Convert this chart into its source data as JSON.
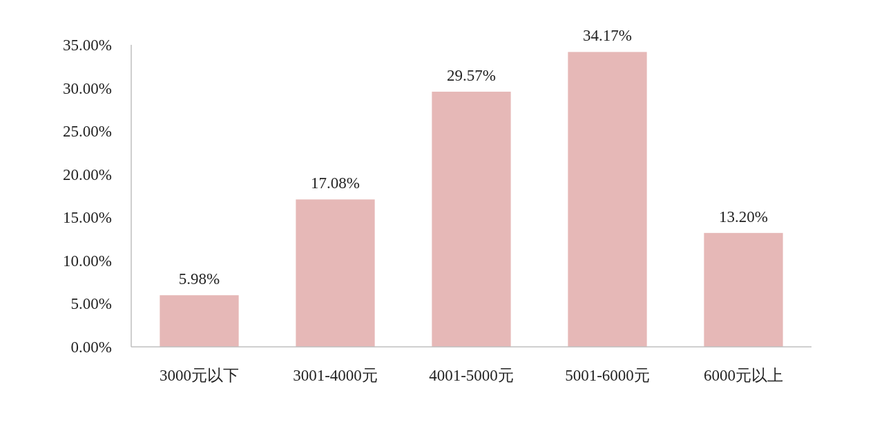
{
  "chart_data": {
    "type": "bar",
    "categories": [
      "3000元以下",
      "3001-4000元",
      "4001-5000元",
      "5001-6000元",
      "6000元以上"
    ],
    "values": [
      5.98,
      17.08,
      29.57,
      34.17,
      13.2
    ],
    "value_labels": [
      "5.98%",
      "17.08%",
      "29.57%",
      "34.17%",
      "13.20%"
    ],
    "color": "#e6b8b7",
    "ylim": [
      0,
      35
    ],
    "yticks": [
      {
        "value": 0,
        "label": "0.00%"
      },
      {
        "value": 5,
        "label": "5.00%"
      },
      {
        "value": 10,
        "label": "10.00%"
      },
      {
        "value": 15,
        "label": "15.00%"
      },
      {
        "value": 20,
        "label": "20.00%"
      },
      {
        "value": 25,
        "label": "25.00%"
      },
      {
        "value": 30,
        "label": "30.00%"
      },
      {
        "value": 35,
        "label": "35.00%"
      }
    ]
  }
}
